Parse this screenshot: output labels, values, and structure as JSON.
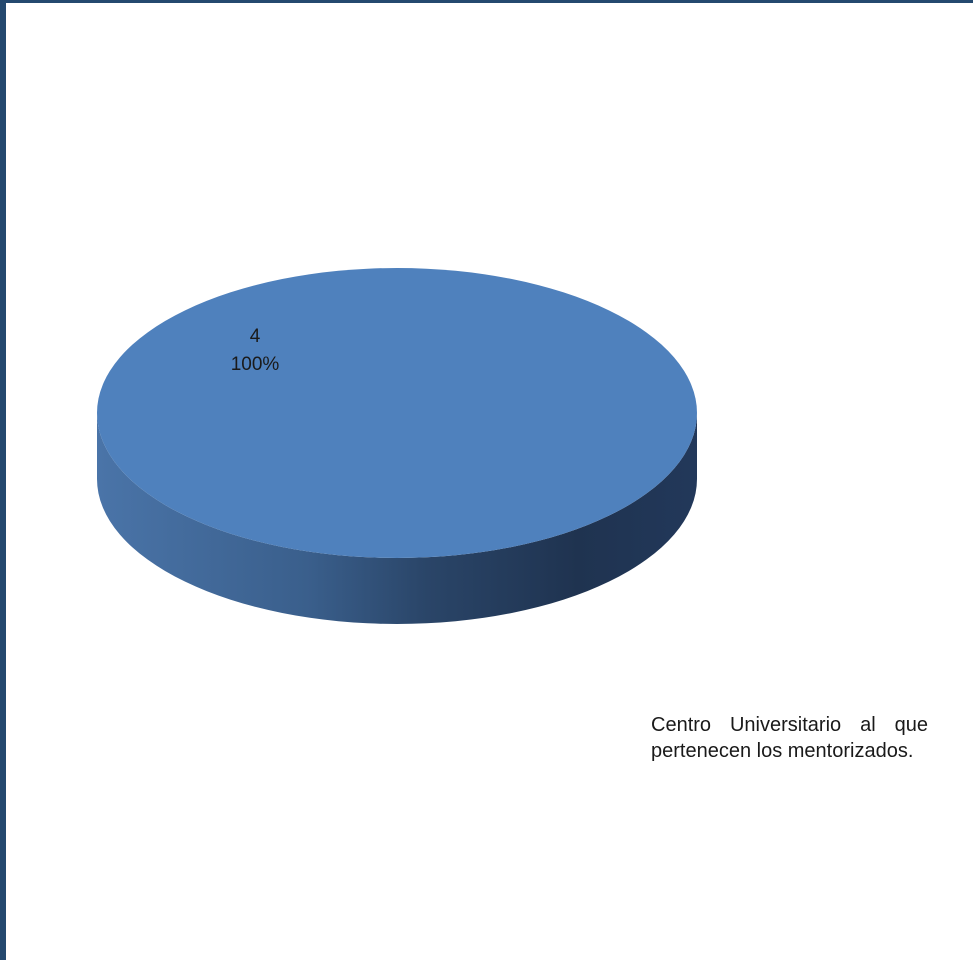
{
  "chart_data": {
    "type": "pie",
    "style": "3d",
    "slices": [
      {
        "value": 4,
        "percent": "100%",
        "color": "#4f81bd"
      }
    ],
    "data_labels": {
      "value": "4",
      "percent": "100%"
    },
    "title": "",
    "legend": false
  },
  "caption": {
    "text": "Centro Universitario al que pertenecen los mentorizados."
  },
  "colors": {
    "frame": "#24496f",
    "pie_top": "#4f81bd",
    "pie_side_light": "#4a73a6",
    "pie_side_dark": "#1f334f"
  }
}
